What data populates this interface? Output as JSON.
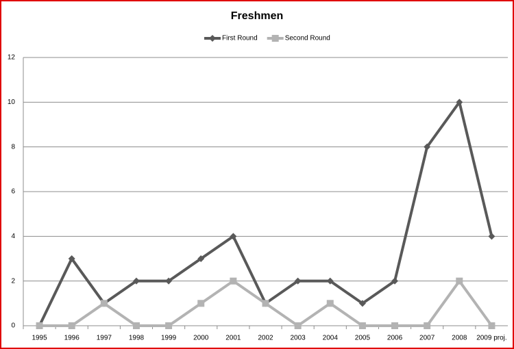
{
  "chart_data": {
    "type": "line",
    "title": "Freshmen",
    "categories": [
      "1995",
      "1996",
      "1997",
      "1998",
      "1999",
      "2000",
      "2001",
      "2002",
      "2003",
      "2004",
      "2005",
      "2006",
      "2007",
      "2008",
      "2009 proj."
    ],
    "series": [
      {
        "name": "First Round",
        "color": "#595959",
        "marker": "diamond",
        "values": [
          0,
          3,
          1,
          2,
          2,
          3,
          4,
          1,
          2,
          2,
          1,
          2,
          8,
          10,
          4
        ]
      },
      {
        "name": "Second Round",
        "color": "#b3b3b3",
        "marker": "square",
        "values": [
          0,
          0,
          1,
          0,
          0,
          1,
          2,
          1,
          0,
          1,
          0,
          0,
          0,
          2,
          0
        ]
      }
    ],
    "ylim": [
      0,
      12
    ],
    "yticks": [
      0,
      2,
      4,
      6,
      8,
      10,
      12
    ],
    "grid": true,
    "legend": "top"
  }
}
